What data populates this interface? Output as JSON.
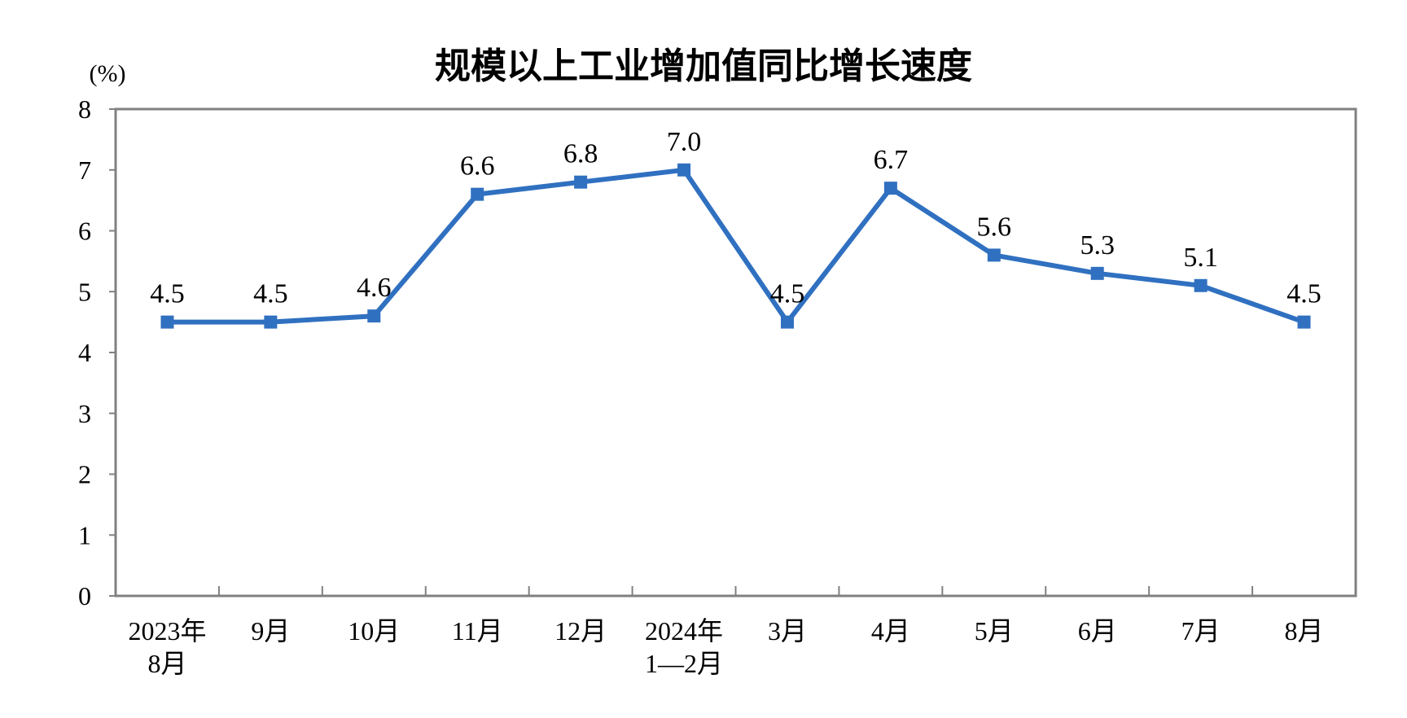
{
  "chart_data": {
    "type": "line",
    "title": "规模以上工业增加值同比增长速度",
    "unit_label": "(%)",
    "xlabel": "",
    "ylabel": "",
    "categories": [
      [
        "2023年",
        "8月"
      ],
      [
        "9月"
      ],
      [
        "10月"
      ],
      [
        "11月"
      ],
      [
        "12月"
      ],
      [
        "2024年",
        "1—2月"
      ],
      [
        "3月"
      ],
      [
        "4月"
      ],
      [
        "5月"
      ],
      [
        "6月"
      ],
      [
        "7月"
      ],
      [
        "8月"
      ]
    ],
    "values": [
      4.5,
      4.5,
      4.6,
      6.6,
      6.8,
      7.0,
      4.5,
      6.7,
      5.6,
      5.3,
      5.1,
      4.5
    ],
    "data_labels": [
      "4.5",
      "4.5",
      "4.6",
      "6.6",
      "6.8",
      "7.0",
      "4.5",
      "6.7",
      "5.6",
      "5.3",
      "5.1",
      "4.5"
    ],
    "ylim": [
      0,
      8
    ],
    "yticks": [
      "0",
      "1",
      "2",
      "3",
      "4",
      "5",
      "6",
      "7",
      "8"
    ],
    "grid": false,
    "legend": "none",
    "line_color": "#3070C0",
    "frame_color": "#808080"
  }
}
